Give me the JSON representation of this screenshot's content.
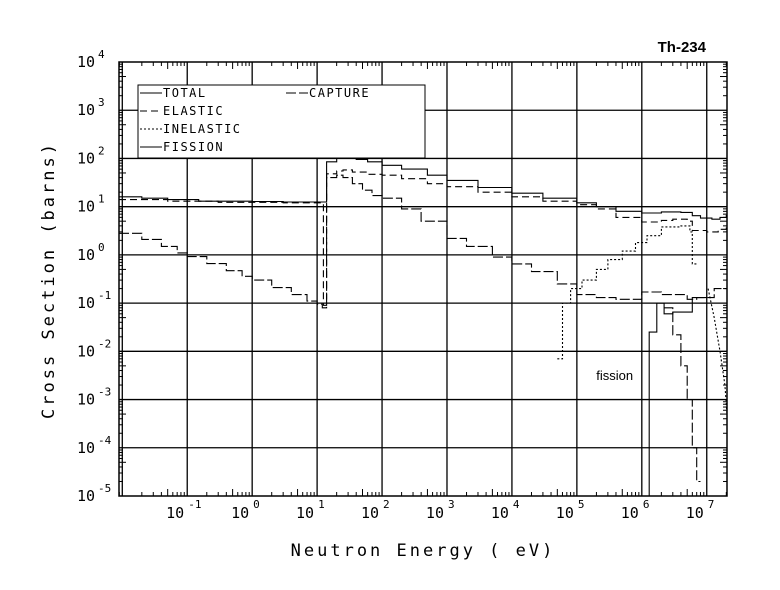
{
  "chart_data": {
    "type": "line",
    "title": "Th-234",
    "xlabel": "Neutron Energy ( eV)",
    "ylabel": "Cross Section (barns)",
    "xscale": "log",
    "yscale": "log",
    "xlim": [
      0.0089,
      20500000
    ],
    "ylim": [
      1e-05,
      10000
    ],
    "grid": true,
    "x_tick_exponents": [
      -1,
      0,
      1,
      2,
      3,
      4,
      5,
      6,
      7
    ],
    "y_tick_exponents": [
      4,
      3,
      2,
      1,
      0,
      -1,
      -2,
      -3,
      -4,
      -5
    ],
    "tick_base": "10",
    "legend_placement": "top-left",
    "annotation": {
      "text": "fission",
      "x": 500000,
      "y": 0.0032
    },
    "series": [
      {
        "name": "TOTAL",
        "style": "solid",
        "segments": [
          {
            "step": true,
            "points": [
              [
                0.0089,
                16
              ],
              [
                0.02,
                15
              ],
              [
                0.05,
                14
              ],
              [
                0.15,
                13
              ],
              [
                1,
                12.8
              ],
              [
                3,
                12.5
              ],
              [
                14,
                85
              ],
              [
                20,
                100
              ],
              [
                23,
                115
              ],
              [
                30,
                105
              ],
              [
                40,
                95
              ],
              [
                60,
                85
              ],
              [
                100,
                72
              ],
              [
                200,
                60
              ],
              [
                500,
                45
              ],
              [
                1000,
                35
              ],
              [
                3000,
                25
              ],
              [
                10000,
                19
              ],
              [
                30000,
                15
              ],
              [
                100000,
                12
              ],
              [
                200000,
                10
              ],
              [
                400000,
                8
              ],
              [
                1000000,
                7.4
              ],
              [
                2000000,
                7.8
              ],
              [
                4000000,
                7.6
              ],
              [
                6000000,
                6.5
              ],
              [
                8000000,
                5.8
              ],
              [
                12000000,
                5.5
              ],
              [
                16000000,
                6
              ],
              [
                20000000,
                6.6
              ],
              [
                20500000,
                6.6
              ]
            ]
          }
        ]
      },
      {
        "name": "ELASTIC",
        "style": "dashed",
        "segments": [
          {
            "step": true,
            "points": [
              [
                0.0089,
                14
              ],
              [
                0.05,
                13
              ],
              [
                0.3,
                12.3
              ],
              [
                3,
                12
              ],
              [
                12.5,
                0.09
              ],
              [
                14,
                48
              ],
              [
                20,
                55
              ],
              [
                25,
                58
              ],
              [
                35,
                52
              ],
              [
                60,
                47
              ],
              [
                100,
                45
              ],
              [
                200,
                38
              ],
              [
                500,
                30
              ],
              [
                1000,
                26
              ],
              [
                3000,
                20
              ],
              [
                10000,
                16
              ],
              [
                30000,
                13
              ],
              [
                100000,
                11
              ],
              [
                200000,
                9
              ],
              [
                400000,
                6
              ],
              [
                1000000,
                4.8
              ],
              [
                2000000,
                5.2
              ],
              [
                3000000,
                5.5
              ],
              [
                5000000,
                5
              ],
              [
                6000000,
                3.2
              ],
              [
                10000000,
                3
              ],
              [
                15000000,
                3.4
              ],
              [
                20000000,
                3.6
              ],
              [
                20500000,
                3.6
              ]
            ]
          }
        ]
      },
      {
        "name": "INELASTIC",
        "style": "dotted",
        "segments": [
          {
            "step": true,
            "points": [
              [
                50000,
                0.007
              ],
              [
                60000,
                0.1
              ],
              [
                80000,
                0.2
              ],
              [
                120000,
                0.3
              ],
              [
                200000,
                0.5
              ],
              [
                300000,
                0.8
              ],
              [
                500000,
                1.2
              ],
              [
                800000,
                1.8
              ],
              [
                1200000,
                2.5
              ],
              [
                2000000,
                3.8
              ],
              [
                4000000,
                4
              ],
              [
                5500000,
                3
              ],
              [
                6000000,
                0.65
              ],
              [
                7000000,
                0.65
              ]
            ]
          },
          {
            "step": false,
            "points": [
              [
                10500000,
                0.2
              ],
              [
                13000000,
                0.05
              ],
              [
                16000000,
                0.01
              ],
              [
                19000000,
                0.002
              ],
              [
                20500000,
                0.0005
              ]
            ]
          }
        ]
      },
      {
        "name": "FISSION",
        "style": "solid",
        "segments": [
          {
            "step": true,
            "points": [
              [
                1300000,
                1e-05
              ],
              [
                1300000,
                0.025
              ],
              [
                1700000,
                0.1
              ],
              [
                2200000,
                0.06
              ],
              [
                3000000,
                0.065
              ],
              [
                5000000,
                0.065
              ],
              [
                6000000,
                0.13
              ],
              [
                10000000,
                0.13
              ]
            ]
          }
        ]
      },
      {
        "name": "CAPTURE",
        "style": "longdash",
        "segments": [
          {
            "step": true,
            "points": [
              [
                0.0089,
                2.8
              ],
              [
                0.02,
                2.1
              ],
              [
                0.04,
                1.5
              ],
              [
                0.07,
                1.1
              ],
              [
                0.1,
                0.92
              ],
              [
                0.2,
                0.66
              ],
              [
                0.4,
                0.47
              ],
              [
                0.7,
                0.36
              ],
              [
                1,
                0.3
              ],
              [
                2,
                0.21
              ],
              [
                4,
                0.15
              ],
              [
                7,
                0.11
              ],
              [
                10,
                0.095
              ],
              [
                12,
                0.08
              ],
              [
                14,
                40
              ],
              [
                20,
                45
              ],
              [
                25,
                40
              ],
              [
                35,
                30
              ],
              [
                50,
                22
              ],
              [
                70,
                17
              ],
              [
                100,
                15
              ],
              [
                200,
                9
              ],
              [
                400,
                5
              ],
              [
                1000,
                2.2
              ],
              [
                2000,
                1.5
              ],
              [
                5000,
                0.9
              ],
              [
                10000,
                0.65
              ],
              [
                20000,
                0.45
              ],
              [
                50000,
                0.25
              ],
              [
                100000,
                0.15
              ],
              [
                200000,
                0.13
              ],
              [
                400000,
                0.12
              ],
              [
                1000000,
                0.17
              ],
              [
                2000000,
                0.15
              ],
              [
                3000000,
                0.15
              ],
              [
                5000000,
                0.12
              ],
              [
                7000000,
                0.13
              ],
              [
                10000000,
                0.13
              ],
              [
                13000000,
                0.2
              ],
              [
                20500000,
                0.2
              ]
            ]
          },
          {
            "step": true,
            "points": [
              [
                2200000,
                0.08
              ],
              [
                3000000,
                0.022
              ],
              [
                4000000,
                0.005
              ],
              [
                5000000,
                0.001
              ],
              [
                6000000,
                0.0001
              ],
              [
                7000000,
                2e-05
              ],
              [
                8000000,
                2e-05
              ]
            ]
          }
        ]
      }
    ]
  }
}
